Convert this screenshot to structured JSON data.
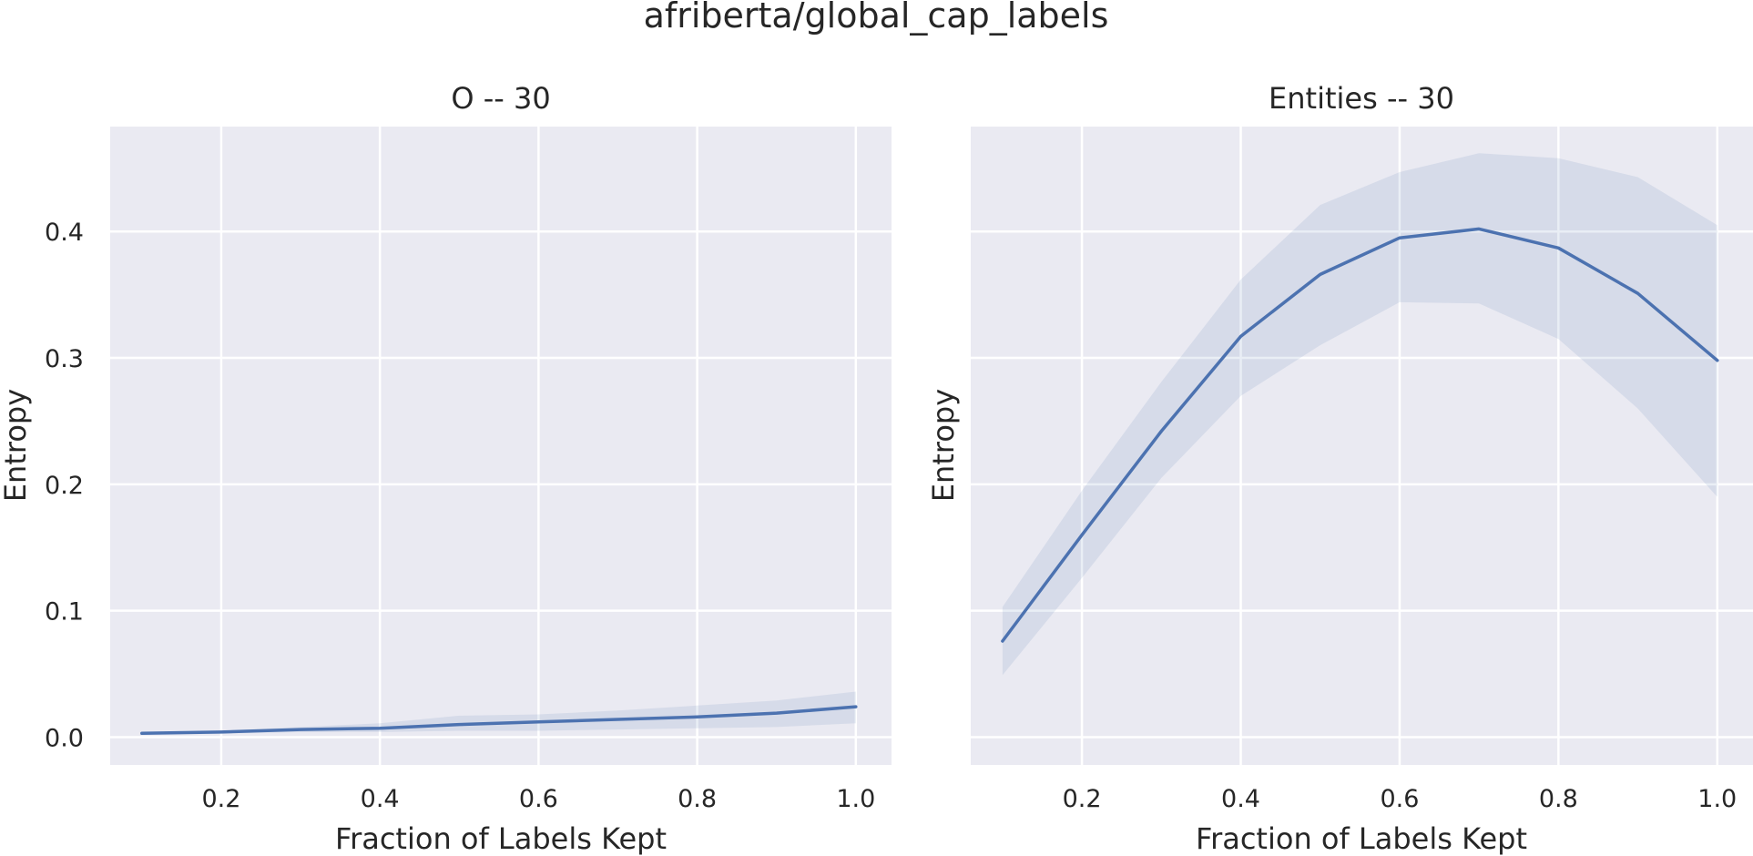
{
  "figure": {
    "title": "afriberta/global_cap_labels"
  },
  "chart_data": [
    {
      "type": "line",
      "title": "O -- 30",
      "xlabel": "Fraction of Labels Kept",
      "ylabel": "Entropy",
      "xlim": [
        0.06,
        1.045
      ],
      "ylim": [
        -0.022,
        0.483
      ],
      "xticks": [
        0.2,
        0.4,
        0.6,
        0.8,
        1.0
      ],
      "xtick_labels": [
        "0.2",
        "0.4",
        "0.6",
        "0.8",
        "1.0"
      ],
      "yticks": [
        0.0,
        0.1,
        0.2,
        0.3,
        0.4
      ],
      "ytick_labels": [
        "0.0",
        "0.1",
        "0.2",
        "0.3",
        "0.4"
      ],
      "show_yticklabels": true,
      "grid": true,
      "color": "#4c72b0",
      "x": [
        0.1,
        0.2,
        0.3,
        0.4,
        0.5,
        0.6,
        0.7,
        0.8,
        0.9,
        1.0
      ],
      "y": [
        0.003,
        0.004,
        0.006,
        0.007,
        0.01,
        0.012,
        0.014,
        0.016,
        0.019,
        0.024
      ],
      "y_lower": [
        0.002,
        0.003,
        0.004,
        0.004,
        0.005,
        0.005,
        0.006,
        0.007,
        0.008,
        0.011
      ],
      "y_upper": [
        0.004,
        0.005,
        0.008,
        0.011,
        0.017,
        0.018,
        0.021,
        0.025,
        0.029,
        0.036
      ]
    },
    {
      "type": "line",
      "title": "Entities -- 30",
      "xlabel": "Fraction of Labels Kept",
      "ylabel": "Entropy",
      "xlim": [
        0.06,
        1.045
      ],
      "ylim": [
        -0.022,
        0.483
      ],
      "xticks": [
        0.2,
        0.4,
        0.6,
        0.8,
        1.0
      ],
      "xtick_labels": [
        "0.2",
        "0.4",
        "0.6",
        "0.8",
        "1.0"
      ],
      "yticks": [
        0.0,
        0.1,
        0.2,
        0.3,
        0.4
      ],
      "ytick_labels": [
        "0.0",
        "0.1",
        "0.2",
        "0.3",
        "0.4"
      ],
      "show_yticklabels": false,
      "grid": true,
      "color": "#4c72b0",
      "x": [
        0.1,
        0.2,
        0.3,
        0.4,
        0.5,
        0.6,
        0.7,
        0.8,
        0.9,
        1.0
      ],
      "y": [
        0.076,
        0.16,
        0.242,
        0.317,
        0.366,
        0.395,
        0.402,
        0.387,
        0.351,
        0.298
      ],
      "y_lower": [
        0.049,
        0.126,
        0.205,
        0.27,
        0.31,
        0.344,
        0.343,
        0.315,
        0.26,
        0.19
      ],
      "y_upper": [
        0.103,
        0.195,
        0.281,
        0.362,
        0.421,
        0.447,
        0.462,
        0.458,
        0.443,
        0.405
      ]
    }
  ]
}
